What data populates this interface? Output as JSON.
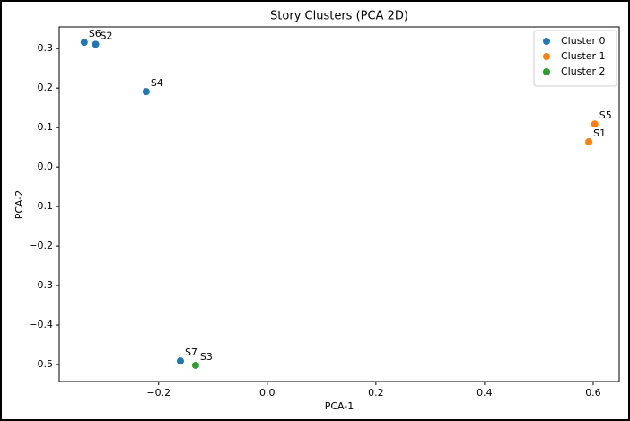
{
  "chart_data": {
    "type": "scatter",
    "title": "Story Clusters (PCA 2D)",
    "x_label": "PCA-1",
    "y_label": "PCA-2",
    "xlim": [
      -0.383,
      0.648
    ],
    "ylim": [
      -0.543,
      0.355
    ],
    "xticks": [
      {
        "value": -0.2,
        "label": "−0.2"
      },
      {
        "value": 0.0,
        "label": "0.0"
      },
      0.2,
      0.4,
      0.6
    ],
    "yticks": [
      {
        "value": -0.5,
        "label": "−0.5"
      },
      {
        "value": -0.4,
        "label": "−0.4"
      },
      {
        "value": -0.3,
        "label": "−0.3"
      },
      {
        "value": -0.2,
        "label": "−0.2"
      },
      {
        "value": -0.1,
        "label": "−0.1"
      },
      {
        "value": 0.0,
        "label": "0.0"
      },
      0.1,
      0.2,
      0.3
    ],
    "legend": "upper right",
    "series": [
      {
        "name": "Cluster 0",
        "color": "#1f77b4",
        "x": [
          -0.337,
          -0.316,
          -0.223,
          -0.16
        ],
        "y": [
          0.316,
          0.311,
          0.191,
          -0.491
        ],
        "labels": [
          "S6",
          "S2",
          "S4",
          "S7"
        ]
      },
      {
        "name": "Cluster 1",
        "color": "#ff7f0e",
        "x": [
          0.603,
          0.592
        ],
        "y": [
          0.109,
          0.064
        ],
        "labels": [
          "S5",
          "S1"
        ]
      },
      {
        "name": "Cluster 2",
        "color": "#2ca02c",
        "x": [
          -0.132
        ],
        "y": [
          -0.502
        ],
        "labels": [
          "S3"
        ]
      }
    ]
  }
}
